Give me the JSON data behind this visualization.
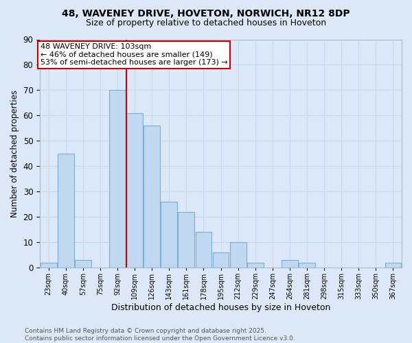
{
  "title1": "48, WAVENEY DRIVE, HOVETON, NORWICH, NR12 8DP",
  "title2": "Size of property relative to detached houses in Hoveton",
  "xlabel": "Distribution of detached houses by size in Hoveton",
  "ylabel": "Number of detached properties",
  "categories": [
    "23sqm",
    "40sqm",
    "57sqm",
    "75sqm",
    "92sqm",
    "109sqm",
    "126sqm",
    "143sqm",
    "161sqm",
    "178sqm",
    "195sqm",
    "212sqm",
    "229sqm",
    "247sqm",
    "264sqm",
    "281sqm",
    "298sqm",
    "315sqm",
    "333sqm",
    "350sqm",
    "367sqm"
  ],
  "values": [
    2,
    45,
    3,
    0,
    70,
    61,
    56,
    26,
    22,
    14,
    6,
    10,
    2,
    0,
    3,
    2,
    0,
    0,
    0,
    0,
    2
  ],
  "bar_color": "#c0d8f0",
  "bar_edge_color": "#7ab0d8",
  "vline_color": "#cc0000",
  "vline_x_idx": 5,
  "annotation_text": "48 WAVENEY DRIVE: 103sqm\n← 46% of detached houses are smaller (149)\n53% of semi-detached houses are larger (173) →",
  "annotation_box_facecolor": "#ffffff",
  "annotation_box_edgecolor": "#cc0000",
  "grid_color": "#c8d8ec",
  "background_color": "#dce8f8",
  "footer": "Contains HM Land Registry data © Crown copyright and database right 2025.\nContains public sector information licensed under the Open Government Licence v3.0.",
  "ylim": [
    0,
    90
  ],
  "yticks": [
    0,
    10,
    20,
    30,
    40,
    50,
    60,
    70,
    80,
    90
  ],
  "title1_fontsize": 10,
  "title2_fontsize": 9,
  "ylabel_fontsize": 8.5,
  "xlabel_fontsize": 9,
  "tick_fontsize": 7,
  "footer_fontsize": 6.5,
  "annot_fontsize": 8
}
